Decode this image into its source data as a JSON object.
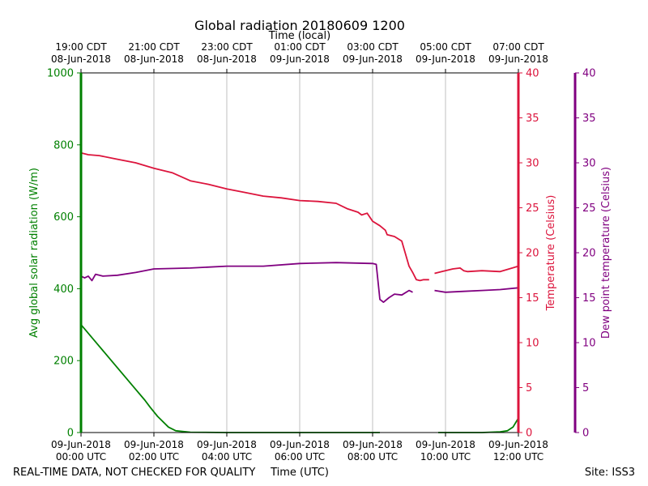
{
  "colors": {
    "radiation": "#008000",
    "temperature": "#dc143c",
    "dewpoint": "#800080",
    "grid": "#b0b0b0",
    "axis": "#000000"
  },
  "chart_data": {
    "type": "line",
    "title": "Global radiation 20180609 1200",
    "top_axis_label": "Time (local)",
    "xlabel": "Time (UTC)",
    "footer_left": "REAL-TIME DATA, NOT CHECKED FOR QUALITY",
    "footer_right": "Site: ISS3",
    "xlim": [
      0,
      12
    ],
    "grid": "vertical",
    "bottom_ticks": [
      {
        "x": 0,
        "line1": "09-Jun-2018",
        "line2": "00:00 UTC"
      },
      {
        "x": 2,
        "line1": "09-Jun-2018",
        "line2": "02:00 UTC"
      },
      {
        "x": 4,
        "line1": "09-Jun-2018",
        "line2": "04:00 UTC"
      },
      {
        "x": 6,
        "line1": "09-Jun-2018",
        "line2": "06:00 UTC"
      },
      {
        "x": 8,
        "line1": "09-Jun-2018",
        "line2": "08:00 UTC"
      },
      {
        "x": 10,
        "line1": "09-Jun-2018",
        "line2": "10:00 UTC"
      },
      {
        "x": 12,
        "line1": "09-Jun-2018",
        "line2": "12:00 UTC"
      }
    ],
    "top_ticks": [
      {
        "x": 0,
        "line1": "19:00 CDT",
        "line2": "08-Jun-2018"
      },
      {
        "x": 2,
        "line1": "21:00 CDT",
        "line2": "08-Jun-2018"
      },
      {
        "x": 4,
        "line1": "23:00 CDT",
        "line2": "08-Jun-2018"
      },
      {
        "x": 6,
        "line1": "01:00 CDT",
        "line2": "09-Jun-2018"
      },
      {
        "x": 8,
        "line1": "03:00 CDT",
        "line2": "09-Jun-2018"
      },
      {
        "x": 10,
        "line1": "05:00 CDT",
        "line2": "09-Jun-2018"
      },
      {
        "x": 12,
        "line1": "07:00 CDT",
        "line2": "09-Jun-2018"
      }
    ],
    "axes": {
      "radiation": {
        "label": "Avg global solar radiation (W/m)",
        "ylim": [
          0,
          1000
        ],
        "ticks": [
          0,
          200,
          400,
          600,
          800,
          1000
        ]
      },
      "temperature": {
        "label": "Temperature (Celsius)",
        "ylim": [
          0,
          40
        ],
        "ticks": [
          0,
          5,
          10,
          15,
          20,
          25,
          30,
          35,
          40
        ]
      },
      "dewpoint": {
        "label": "Dew point temperature (Celsius)",
        "ylim": [
          0,
          40
        ],
        "ticks": [
          0,
          5,
          10,
          15,
          20,
          25,
          30,
          35,
          40
        ]
      }
    },
    "series": [
      {
        "key": "radiation",
        "segments": [
          [
            [
              0,
              300
            ],
            [
              0.5,
              240
            ],
            [
              1,
              180
            ],
            [
              1.5,
              120
            ],
            [
              1.75,
              90
            ],
            [
              1.9,
              70
            ],
            [
              2.1,
              45
            ],
            [
              2.4,
              15
            ],
            [
              2.6,
              5
            ],
            [
              3,
              1
            ],
            [
              4,
              0
            ],
            [
              6,
              0
            ],
            [
              8,
              0
            ],
            [
              8.2,
              0
            ]
          ],
          [
            [
              9.8,
              0
            ],
            [
              10.5,
              0
            ],
            [
              11,
              0
            ],
            [
              11.5,
              2
            ],
            [
              11.7,
              5
            ],
            [
              11.85,
              15
            ],
            [
              12,
              40
            ]
          ]
        ]
      },
      {
        "key": "temperature",
        "segments": [
          [
            [
              0,
              31.1
            ],
            [
              0.2,
              30.9
            ],
            [
              0.5,
              30.8
            ],
            [
              1,
              30.4
            ],
            [
              1.5,
              30.0
            ],
            [
              2,
              29.4
            ],
            [
              2.5,
              28.9
            ],
            [
              3,
              28.0
            ],
            [
              3.5,
              27.6
            ],
            [
              4,
              27.1
            ],
            [
              4.5,
              26.7
            ],
            [
              5,
              26.3
            ],
            [
              5.5,
              26.1
            ],
            [
              6,
              25.8
            ],
            [
              6.5,
              25.7
            ],
            [
              7,
              25.5
            ],
            [
              7.3,
              24.9
            ],
            [
              7.6,
              24.5
            ],
            [
              7.7,
              24.2
            ],
            [
              7.85,
              24.4
            ],
            [
              8,
              23.5
            ],
            [
              8.2,
              23.0
            ],
            [
              8.35,
              22.5
            ],
            [
              8.4,
              22.0
            ],
            [
              8.6,
              21.8
            ],
            [
              8.8,
              21.3
            ],
            [
              9.0,
              18.5
            ],
            [
              9.1,
              17.8
            ],
            [
              9.2,
              17.0
            ],
            [
              9.3,
              16.9
            ],
            [
              9.4,
              17.0
            ],
            [
              9.55,
              17.0
            ]
          ]
        ]
      },
      {
        "key": "dewpoint",
        "segments": [
          [
            [
              0,
              17.4
            ],
            [
              0.1,
              17.2
            ],
            [
              0.2,
              17.4
            ],
            [
              0.3,
              16.9
            ],
            [
              0.4,
              17.6
            ],
            [
              0.6,
              17.4
            ],
            [
              1,
              17.5
            ],
            [
              1.5,
              17.8
            ],
            [
              2,
              18.2
            ],
            [
              3,
              18.3
            ],
            [
              4,
              18.5
            ],
            [
              5,
              18.5
            ],
            [
              6,
              18.8
            ],
            [
              7,
              18.9
            ],
            [
              8,
              18.8
            ],
            [
              8.1,
              18.7
            ],
            [
              8.2,
              14.8
            ],
            [
              8.3,
              14.5
            ],
            [
              8.45,
              15.0
            ],
            [
              8.6,
              15.4
            ],
            [
              8.8,
              15.3
            ],
            [
              9.0,
              15.8
            ],
            [
              9.1,
              15.6
            ]
          ]
        ]
      },
      {
        "key": "temperature",
        "segments": [
          [
            [
              9.7,
              17.7
            ],
            [
              9.9,
              17.9
            ],
            [
              10.2,
              18.2
            ],
            [
              10.4,
              18.3
            ],
            [
              10.5,
              18.0
            ],
            [
              10.6,
              17.9
            ],
            [
              11,
              18.0
            ],
            [
              11.5,
              17.9
            ],
            [
              12,
              18.5
            ]
          ]
        ]
      },
      {
        "key": "dewpoint",
        "segments": [
          [
            [
              9.7,
              15.8
            ],
            [
              10,
              15.6
            ],
            [
              10.5,
              15.7
            ],
            [
              11,
              15.8
            ],
            [
              11.5,
              15.9
            ],
            [
              12,
              16.1
            ]
          ]
        ]
      }
    ]
  }
}
